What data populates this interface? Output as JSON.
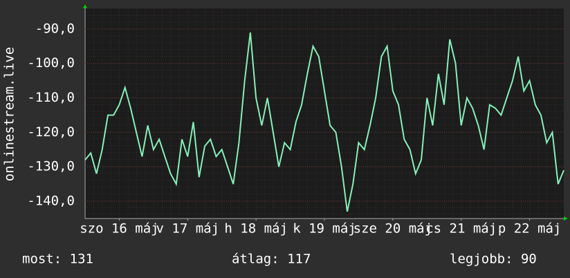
{
  "chart_data": {
    "type": "line",
    "y_label": "onlinestream.live",
    "x": [
      0,
      2,
      4,
      6,
      8,
      10,
      12,
      14,
      16,
      18,
      20,
      22,
      24,
      26,
      28,
      30,
      32,
      34,
      36,
      38,
      40,
      42,
      44,
      46,
      48,
      50,
      52,
      54,
      56,
      58,
      60,
      62,
      64,
      66,
      68,
      70,
      72,
      74,
      76,
      78,
      80,
      82,
      84,
      86,
      88,
      90,
      92,
      94,
      96,
      98,
      100,
      102,
      104,
      106,
      108,
      110,
      112,
      114,
      116,
      118,
      120,
      122,
      124,
      126,
      128,
      130,
      132,
      134,
      136,
      138,
      140,
      142,
      144,
      146,
      148,
      150,
      152,
      154,
      156,
      158,
      160,
      162,
      164,
      166,
      168
    ],
    "series": [
      {
        "color": "#86f0b8",
        "values": [
          -128,
          -126,
          -132,
          -125,
          -115,
          -115,
          -112,
          -107,
          -113,
          -120,
          -127,
          -118,
          -125,
          -122,
          -127,
          -132,
          -135,
          -122,
          -127,
          -117,
          -133,
          -124,
          -122,
          -127,
          -125,
          -130,
          -135,
          -123,
          -105,
          -91,
          -110,
          -118,
          -110,
          -120,
          -130,
          -123,
          -125,
          -117,
          -112,
          -103,
          -95,
          -98,
          -108,
          -118,
          -120,
          -130,
          -143,
          -135,
          -123,
          -125,
          -118,
          -110,
          -98,
          -95,
          -108,
          -112,
          -122,
          -125,
          -132,
          -128,
          -110,
          -118,
          -103,
          -112,
          -93,
          -100,
          -118,
          -110,
          -113,
          -118,
          -125,
          -112,
          -113,
          -115,
          -110,
          -105,
          -98,
          -108,
          -105,
          -112,
          -115,
          -123,
          -120,
          -135,
          -131
        ]
      }
    ],
    "xlim": [
      0,
      168
    ],
    "xticks": [
      {
        "value": 12,
        "label": "szo 16 máj"
      },
      {
        "value": 36,
        "label": "v 17 máj"
      },
      {
        "value": 60,
        "label": "h 18 máj"
      },
      {
        "value": 84,
        "label": "k 19 máj"
      },
      {
        "value": 108,
        "label": "sze 20 máj"
      },
      {
        "value": 132,
        "label": "cs 21 máj"
      },
      {
        "value": 156,
        "label": "p 22 máj"
      }
    ],
    "ylim": [
      -145,
      -84
    ],
    "yticks": [
      {
        "value": -90,
        "label": "-90,0"
      },
      {
        "value": -100,
        "label": "-100,0"
      },
      {
        "value": -110,
        "label": "-110,0"
      },
      {
        "value": -120,
        "label": "-120,0"
      },
      {
        "value": -130,
        "label": "-130,0"
      },
      {
        "value": -140,
        "label": "-140,0"
      }
    ],
    "grid": true
  },
  "footer": {
    "current": "most: 131",
    "average": "átlag: 117",
    "best": "legjobb: 90"
  }
}
